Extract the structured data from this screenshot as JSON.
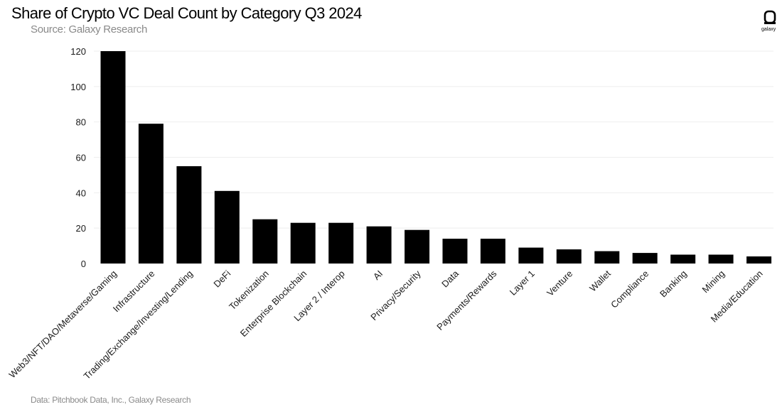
{
  "header": {
    "title": "Share of Crypto VC Deal Count by Category Q3 2024",
    "subtitle": "Source: Galaxy Research"
  },
  "footer": {
    "note": "Data: Pitchbook Data, Inc., Galaxy Research"
  },
  "logo": {
    "label": "galaxy",
    "icon": "galaxy-logo-icon"
  },
  "colors": {
    "bar": "#000000",
    "grid": "#eeeeee",
    "text": "#1a1a1a",
    "muted": "#8a8a8a"
  },
  "chart_data": {
    "type": "bar",
    "title": "Share of Crypto VC Deal Count by Category Q3 2024",
    "subtitle": "Source: Galaxy Research",
    "xlabel": "",
    "ylabel": "",
    "ylim": [
      0,
      120
    ],
    "yticks": [
      0,
      20,
      40,
      60,
      80,
      100,
      120
    ],
    "grid": true,
    "legend": "none",
    "categories": [
      "Web3/NFT/DAO/Metaverse/Gaming",
      "Infrastructure",
      "Trading/Exchange/Investing/Lending",
      "DeFi",
      "Tokenization",
      "Enterprise Blockchain",
      "Layer 2 / Interop",
      "AI",
      "Privacy/Security",
      "Data",
      "Payments/Rewards",
      "Layer 1",
      "Venture",
      "Wallet",
      "Compliance",
      "Banking",
      "Mining",
      "Media/Education"
    ],
    "values": [
      120,
      79,
      55,
      41,
      25,
      23,
      23,
      21,
      19,
      14,
      14,
      9,
      8,
      7,
      6,
      5,
      5,
      4
    ]
  }
}
